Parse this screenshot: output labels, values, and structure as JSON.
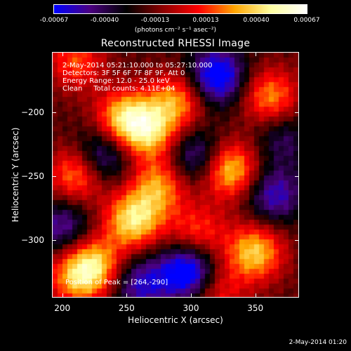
{
  "colorbar": {
    "ticks": [
      "-0.00067",
      "-0.00040",
      "-0.00013",
      "0.00013",
      "0.00040",
      "0.00067"
    ],
    "unit": "(photons cm⁻² s⁻¹ asec⁻²)",
    "range": [
      -0.00067,
      0.00067
    ]
  },
  "overlay": {
    "time_range": "2-May-2014 05:21:10.000 to 05:27:10.000",
    "detectors": "Detectors: 3F 5F 6F 7F 8F 9F, Att 0",
    "energy": "Energy Range: 12.0 - 25.0 keV",
    "clean": "Clean     Total counts: 4.11E+04",
    "peak": "Position of Peak = [264,-290]"
  },
  "footer": {
    "timestamp": "2-May-2014 01:20"
  },
  "chart_data": {
    "type": "heatmap",
    "title": "Reconstructed RHESSI Image",
    "xlabel": "Heliocentric X (arcsec)",
    "ylabel": "Heliocentric Y (arcsec)",
    "xlim": [
      192,
      384
    ],
    "ylim": [
      -345,
      -153
    ],
    "x_ticks": [
      200,
      250,
      300,
      350
    ],
    "y_ticks": [
      -200,
      -250,
      -300
    ],
    "colormap": [
      "#0000ff",
      "#4b0080",
      "#000000",
      "#8b0000",
      "#ff0000",
      "#ffa500",
      "#ffffa0",
      "#ffffff"
    ],
    "blobs": [
      {
        "x": 248,
        "y": -205,
        "value": 0.00055
      },
      {
        "x": 268,
        "y": -215,
        "value": 0.0005
      },
      {
        "x": 290,
        "y": -190,
        "value": 0.00045
      },
      {
        "x": 362,
        "y": -188,
        "value": 0.00045
      },
      {
        "x": 212,
        "y": -248,
        "value": 0.0005
      },
      {
        "x": 275,
        "y": -258,
        "value": 0.00045
      },
      {
        "x": 330,
        "y": -245,
        "value": 0.0006
      },
      {
        "x": 255,
        "y": -285,
        "value": 0.0006
      },
      {
        "x": 305,
        "y": -295,
        "value": 0.00035
      },
      {
        "x": 350,
        "y": -310,
        "value": 0.00055
      },
      {
        "x": 225,
        "y": -320,
        "value": 0.0005
      },
      {
        "x": 210,
        "y": -330,
        "value": 0.0004
      },
      {
        "x": 320,
        "y": -340,
        "value": 0.0003
      },
      {
        "x": 210,
        "y": -160,
        "value": 0.00035
      },
      {
        "x": 320,
        "y": -172,
        "value": -0.0006
      },
      {
        "x": 230,
        "y": -235,
        "value": -0.00045
      },
      {
        "x": 305,
        "y": -235,
        "value": -0.0004
      },
      {
        "x": 298,
        "y": -325,
        "value": -0.00065
      },
      {
        "x": 365,
        "y": -265,
        "value": -0.0004
      },
      {
        "x": 200,
        "y": -290,
        "value": -0.00035
      },
      {
        "x": 260,
        "y": -335,
        "value": -0.0004
      },
      {
        "x": 372,
        "y": -220,
        "value": -0.00025
      }
    ]
  }
}
